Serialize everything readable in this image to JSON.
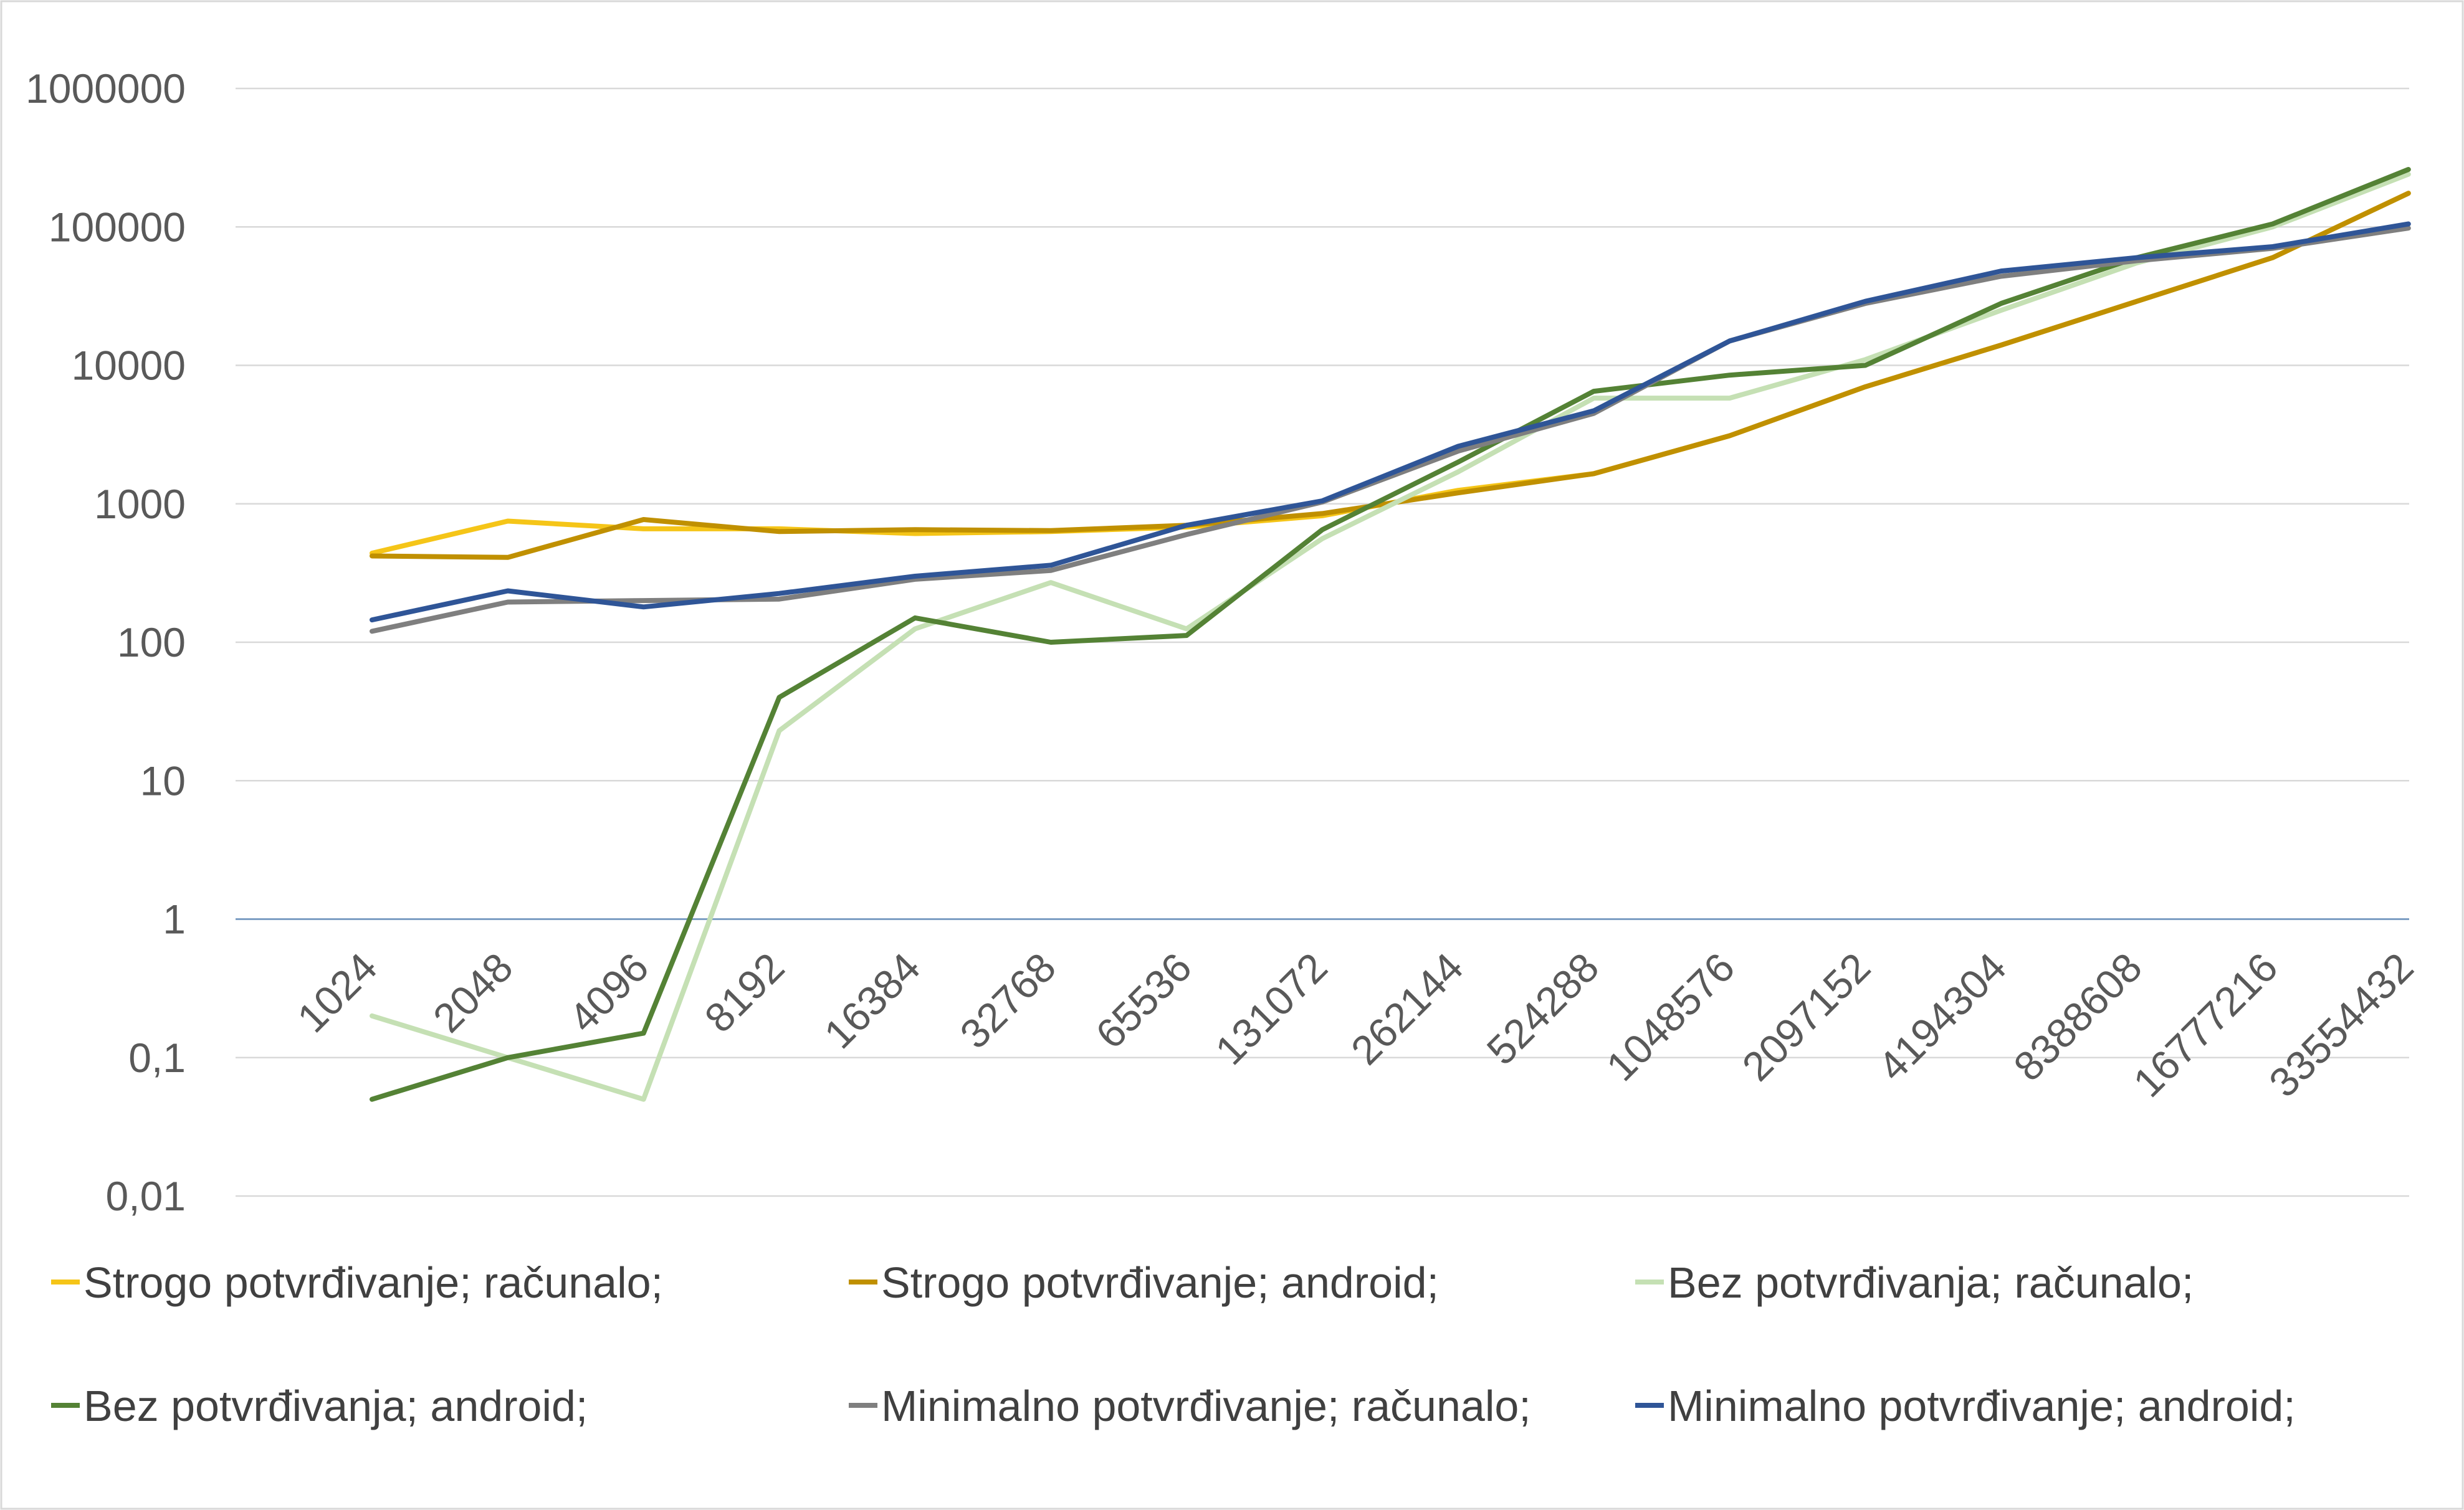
{
  "chart_data": {
    "type": "line",
    "title": "",
    "xlabel": "",
    "ylabel": "",
    "y_scale": "log",
    "ylim": [
      0.01,
      1000000
    ],
    "y_ticks": [
      "0,01",
      "0,1",
      "1",
      "10",
      "100",
      "1000",
      "10000",
      "100000",
      "1000000"
    ],
    "x": [
      "1024",
      "2048",
      "4096",
      "8192",
      "16384",
      "32768",
      "65536",
      "131072",
      "262144",
      "524288",
      "1048576",
      "2097152",
      "4194304",
      "8388608",
      "16777216",
      "33554432"
    ],
    "grid": true,
    "legend_position": "bottom",
    "series": [
      {
        "name": "Strogo potvrđivanje; računalo;",
        "color": "#f5c518",
        "values": [
          440,
          750,
          660,
          660,
          610,
          630,
          680,
          820,
          1250,
          1650,
          3100,
          7000,
          14000,
          29000,
          60000,
          175000
        ]
      },
      {
        "name": "Strogo potvrđivanje;  android;",
        "color": "#c09000",
        "values": [
          420,
          410,
          770,
          630,
          650,
          640,
          700,
          850,
          1200,
          1650,
          3100,
          7000,
          14000,
          29000,
          60000,
          175000
        ]
      },
      {
        "name": "Bez potvrđivanja; računalo;",
        "color": "#c5e0b4",
        "values": [
          0.2,
          0.1,
          0.05,
          23,
          125,
          270,
          125,
          560,
          1700,
          5800,
          5800,
          11000,
          25000,
          55000,
          100000,
          240000
        ]
      },
      {
        "name": "Bez potvrđivanja; android;",
        "color": "#548235",
        "values": [
          0.05,
          0.1,
          0.15,
          40,
          150,
          100,
          112,
          650,
          2000,
          6500,
          8500,
          10000,
          28000,
          60000,
          105000,
          260000
        ]
      },
      {
        "name": "Minimalno potvrđivanje; računalo;",
        "color": "#7f7f7f",
        "values": [
          120,
          195,
          200,
          205,
          285,
          330,
          600,
          1030,
          2400,
          4500,
          15000,
          28000,
          44000,
          57000,
          70000,
          98000
        ]
      },
      {
        "name": "Minimalno potvrđivanje; android;",
        "color": "#2f5597",
        "values": [
          145,
          235,
          180,
          225,
          300,
          360,
          700,
          1050,
          2600,
          4700,
          15000,
          29000,
          48000,
          60000,
          72000,
          105000
        ]
      }
    ]
  }
}
